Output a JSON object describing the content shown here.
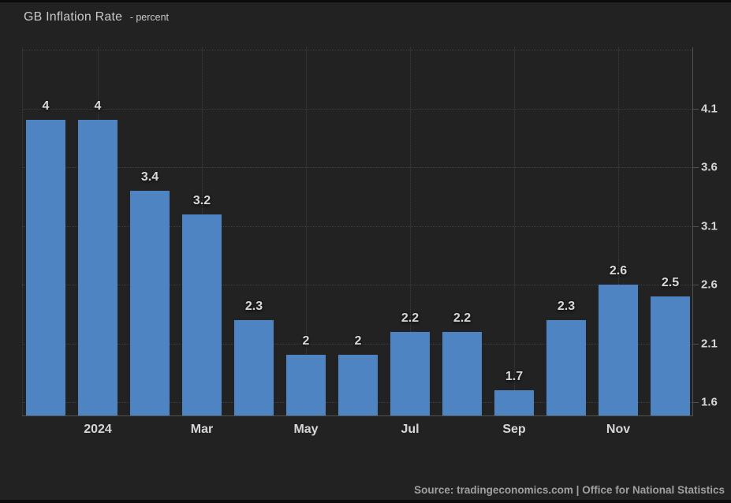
{
  "title": "GB Inflation Rate",
  "subtitle": "- percent",
  "source": "Source: tradingeconomics.com | Office for National Statistics",
  "colors": {
    "background": "#222222",
    "bar": "#4f84c2",
    "gridline": "#3f3f3f",
    "axis_line": "#525252",
    "title_text": "#c9c9c9",
    "axis_label_text": "#d6d6d6",
    "data_label_text": "#d9d9d9",
    "source_text": "#a0a0a0"
  },
  "chart_data": {
    "type": "bar",
    "title": "GB Inflation Rate",
    "units": "percent",
    "values": [
      4,
      4,
      3.4,
      3.2,
      2.3,
      2,
      2,
      2.2,
      2.2,
      1.7,
      2.3,
      2.6,
      2.5
    ],
    "data_labels": [
      "4",
      "4",
      "3.4",
      "3.2",
      "2.3",
      "2",
      "2",
      "2.2",
      "2.2",
      "1.7",
      "2.3",
      "2.6",
      "2.5"
    ],
    "x_ticks": [
      {
        "bar_index": 1,
        "label": "2024"
      },
      {
        "bar_index": 3,
        "label": "Mar"
      },
      {
        "bar_index": 5,
        "label": "May"
      },
      {
        "bar_index": 7,
        "label": "Jul"
      },
      {
        "bar_index": 9,
        "label": "Sep"
      },
      {
        "bar_index": 11,
        "label": "Nov"
      }
    ],
    "y_ticks": [
      4.1,
      3.6,
      3.1,
      2.6,
      2.1,
      1.6
    ],
    "y_gridlines": [
      4.6,
      4.1,
      3.6,
      3.1,
      2.6,
      2.1,
      1.6
    ],
    "ylim": [
      1.486,
      4.62
    ],
    "grid": true,
    "legend": false,
    "yaxis_position": "right"
  }
}
